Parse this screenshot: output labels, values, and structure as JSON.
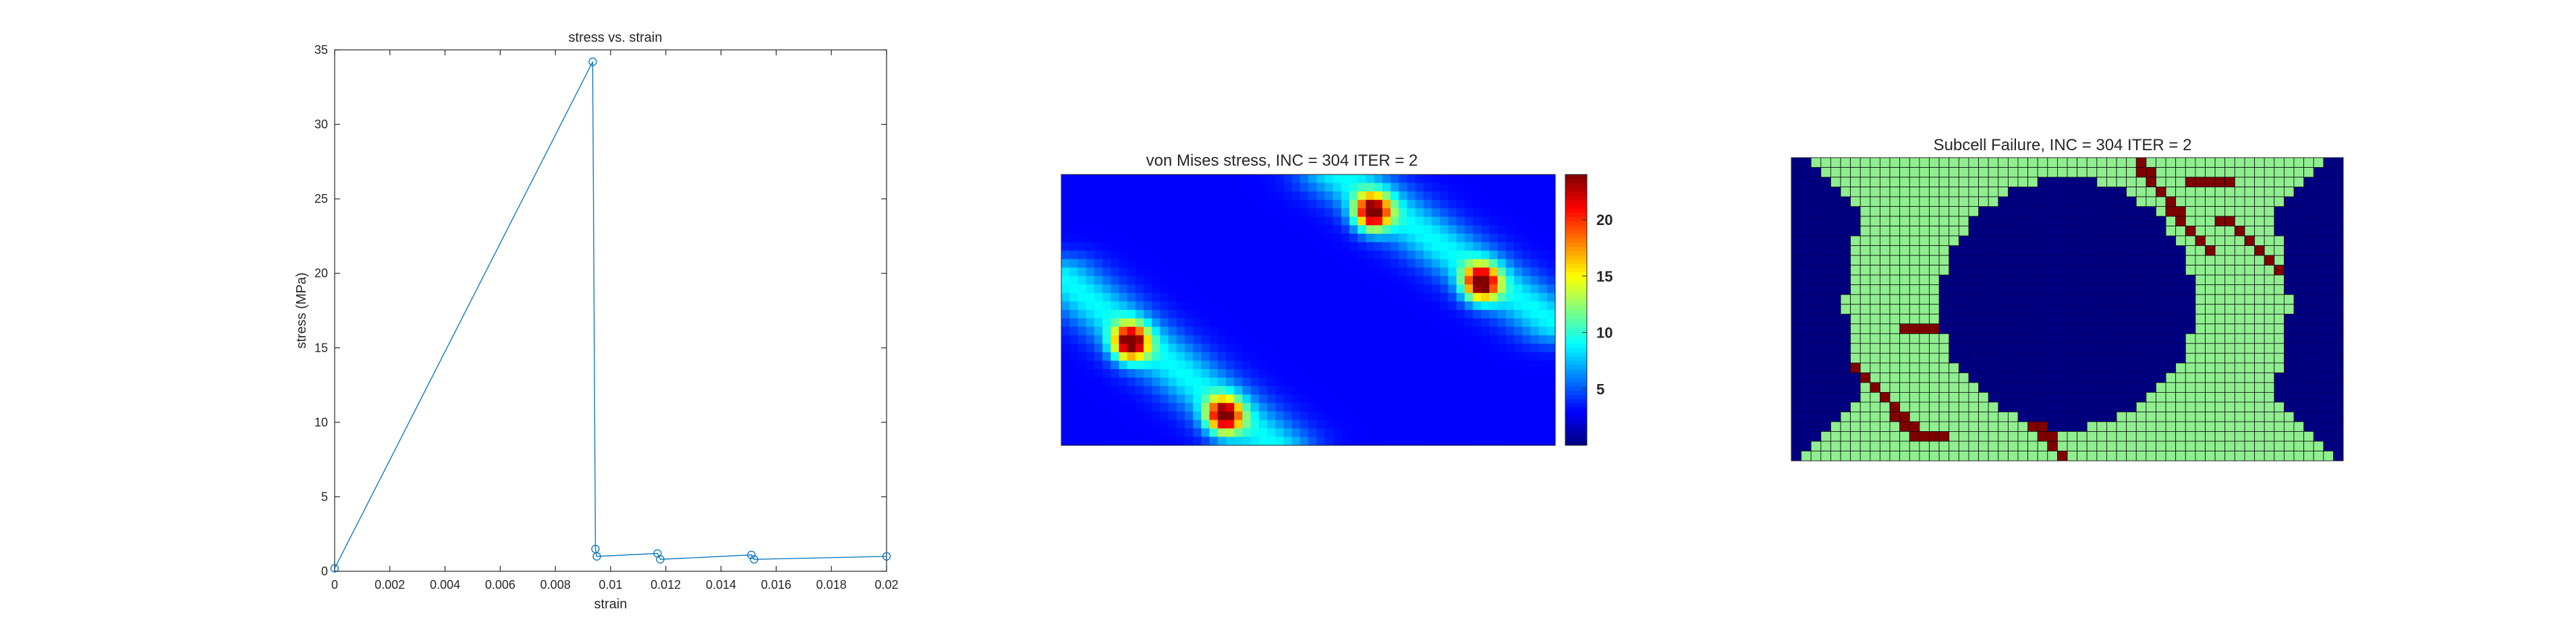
{
  "chart_data": [
    {
      "type": "line",
      "title": "stress vs. strain",
      "xlabel": "strain",
      "ylabel": "stress (MPa)",
      "xlim": [
        0,
        0.02
      ],
      "ylim": [
        0,
        35
      ],
      "xticks": [
        0,
        0.002,
        0.004,
        0.006,
        0.008,
        0.01,
        0.012,
        0.014,
        0.016,
        0.018,
        0.02
      ],
      "xtick_labels": [
        "0",
        "0.002",
        "0.004",
        "0.006",
        "0.008",
        "0.01",
        "0.012",
        "0.014",
        "0.016",
        "0.018",
        "0.02"
      ],
      "yticks": [
        0,
        5,
        10,
        15,
        20,
        25,
        30,
        35
      ],
      "ytick_labels": [
        "0",
        "5",
        "10",
        "15",
        "20",
        "25",
        "30",
        "35"
      ],
      "grid": false,
      "marker": "circle",
      "color": "#0072BD",
      "series": [
        {
          "x": [
            0,
            0.00935,
            0.00945,
            0.0095,
            0.0117,
            0.0118,
            0.0151,
            0.0152,
            0.02
          ],
          "y": [
            0.2,
            34.2,
            1.5,
            1.0,
            1.2,
            0.8,
            1.1,
            0.8,
            1.0
          ]
        }
      ]
    },
    {
      "type": "heatmap",
      "title": "von Mises stress, INC = 304 ITER = 2",
      "colormap": "jet",
      "colorbar_ticks": [
        5,
        10,
        15,
        20
      ],
      "colorbar_tick_labels": [
        "5",
        "10",
        "15",
        "20"
      ],
      "clim": [
        0,
        24
      ],
      "background_level": 3,
      "bands": [
        {
          "from": [
            0.0,
            0.38
          ],
          "to": [
            0.43,
            1.0
          ],
          "level": 9
        },
        {
          "from": [
            0.56,
            0.0
          ],
          "to": [
            1.0,
            0.55
          ],
          "level": 9
        }
      ],
      "hotspots": [
        {
          "at": [
            0.14,
            0.62
          ],
          "level": 22
        },
        {
          "at": [
            0.33,
            0.89
          ],
          "level": 21
        },
        {
          "at": [
            0.63,
            0.14
          ],
          "level": 22
        },
        {
          "at": [
            0.85,
            0.4
          ],
          "level": 22
        }
      ]
    },
    {
      "type": "heatmap",
      "title": "Subcell Failure, INC = 304 ITER = 2",
      "colors": {
        "void": "#000080",
        "intact": "#8fee8f",
        "failed": "#800000",
        "grid": "#0d0d0d"
      },
      "grid_cells": [
        56,
        31
      ],
      "hole": {
        "center": [
          0.5,
          0.48
        ],
        "radii": [
          0.23,
          0.41
        ]
      },
      "band_halfwidth": 0.17,
      "failed_paths": [
        {
          "from": [
            0.0,
            0.45
          ],
          "to": [
            0.23,
            0.92
          ]
        },
        {
          "from": [
            0.28,
            0.52
          ],
          "to": [
            0.5,
            1.0
          ]
        },
        {
          "from": [
            0.62,
            0.0
          ],
          "to": [
            0.76,
            0.32
          ]
        },
        {
          "from": [
            0.78,
            0.2
          ],
          "to": [
            1.0,
            0.55
          ]
        },
        {
          "from": [
            0.2,
            0.57
          ],
          "to": [
            0.27,
            0.57
          ]
        },
        {
          "from": [
            0.74,
            0.42
          ],
          "to": [
            0.84,
            0.42
          ]
        },
        {
          "from": [
            0.73,
            0.08
          ],
          "to": [
            0.8,
            0.08
          ]
        },
        {
          "from": [
            0.22,
            0.91
          ],
          "to": [
            0.29,
            0.91
          ]
        }
      ]
    }
  ]
}
